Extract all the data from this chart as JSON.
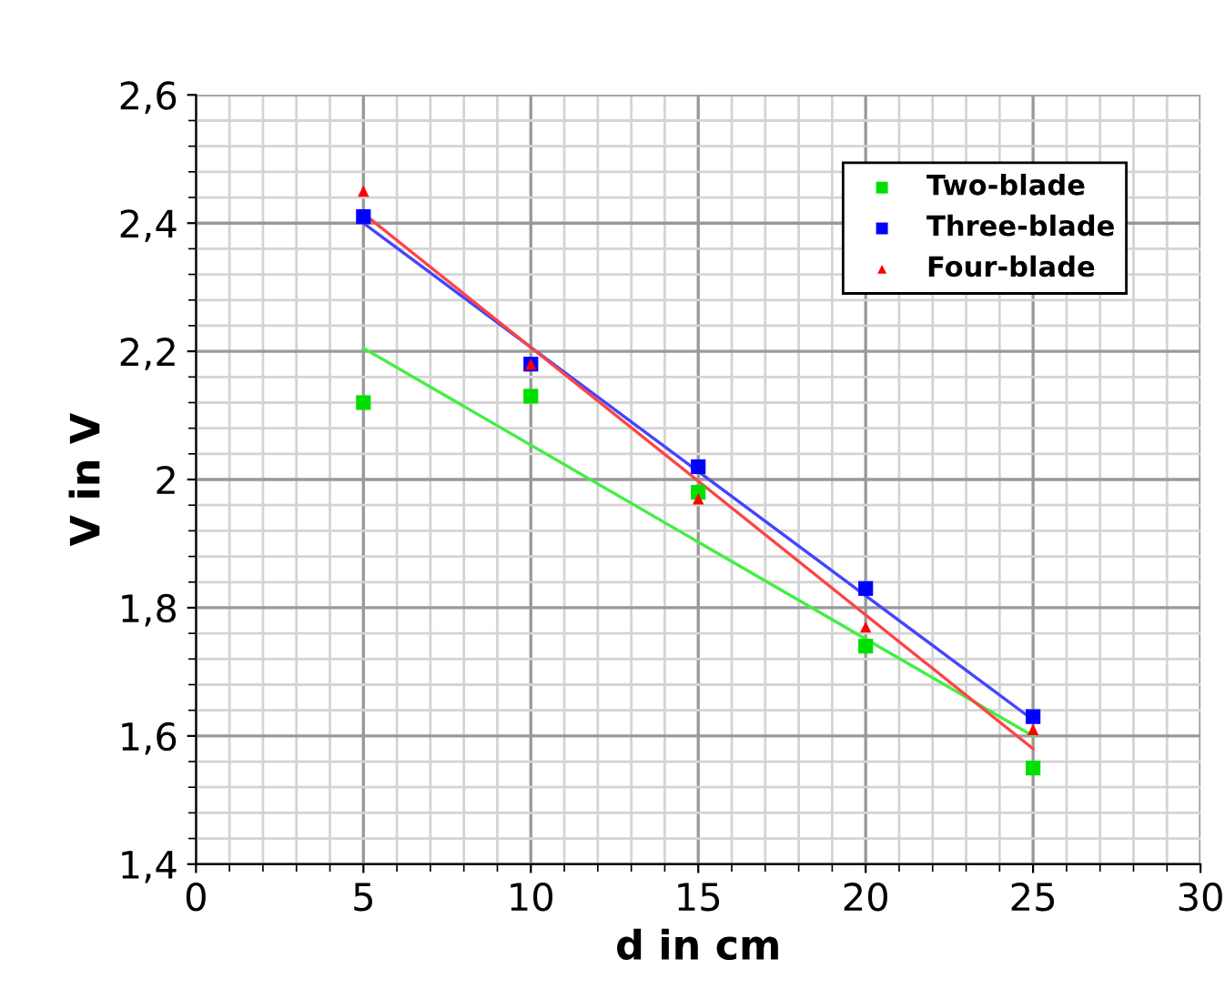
{
  "chart_data": {
    "type": "scatter",
    "xlabel": "d in cm",
    "ylabel": "V in V",
    "xlim": [
      0,
      30
    ],
    "xticks": [
      0,
      5,
      10,
      15,
      20,
      25,
      30
    ],
    "ylim": [
      1.4,
      2.6
    ],
    "yticks": [
      {
        "value": 1.4,
        "label": "1,4"
      },
      {
        "value": 1.6,
        "label": "1,6"
      },
      {
        "value": 1.8,
        "label": "1,8"
      },
      {
        "value": 2,
        "label": "2"
      },
      {
        "value": 2.2,
        "label": "2,2"
      },
      {
        "value": 2.4,
        "label": "2,4"
      },
      {
        "value": 2.6,
        "label": "2,6"
      }
    ],
    "grid": true,
    "legend": "top right",
    "series": [
      {
        "name": "Two-blade",
        "color": "#00e000",
        "marker": "square",
        "x": [
          5,
          10,
          15,
          20,
          25
        ],
        "values": [
          2.12,
          2.13,
          1.98,
          1.74,
          1.55
        ]
      },
      {
        "name": "Three-blade",
        "color": "#0000ff",
        "marker": "square",
        "x": [
          5,
          10,
          15,
          20,
          25
        ],
        "values": [
          2.41,
          2.18,
          2.02,
          1.83,
          1.63
        ]
      },
      {
        "name": "Four-blade",
        "color": "#ff0000",
        "marker": "triangle",
        "x": [
          5,
          10,
          15,
          20,
          25
        ],
        "values": [
          2.45,
          2.18,
          1.97,
          1.77,
          1.61
        ]
      },
      {
        "type": "line",
        "color": "#44ee44",
        "marker": "none",
        "x": [
          5,
          25
        ],
        "values": [
          2.205,
          1.6
        ]
      },
      {
        "type": "line",
        "color": "#4444ff",
        "marker": "none",
        "x": [
          5,
          25
        ],
        "values": [
          2.4,
          1.625
        ]
      },
      {
        "type": "line",
        "color": "#ff4444",
        "marker": "none",
        "x": [
          5,
          25
        ],
        "values": [
          2.415,
          1.58
        ]
      }
    ]
  }
}
